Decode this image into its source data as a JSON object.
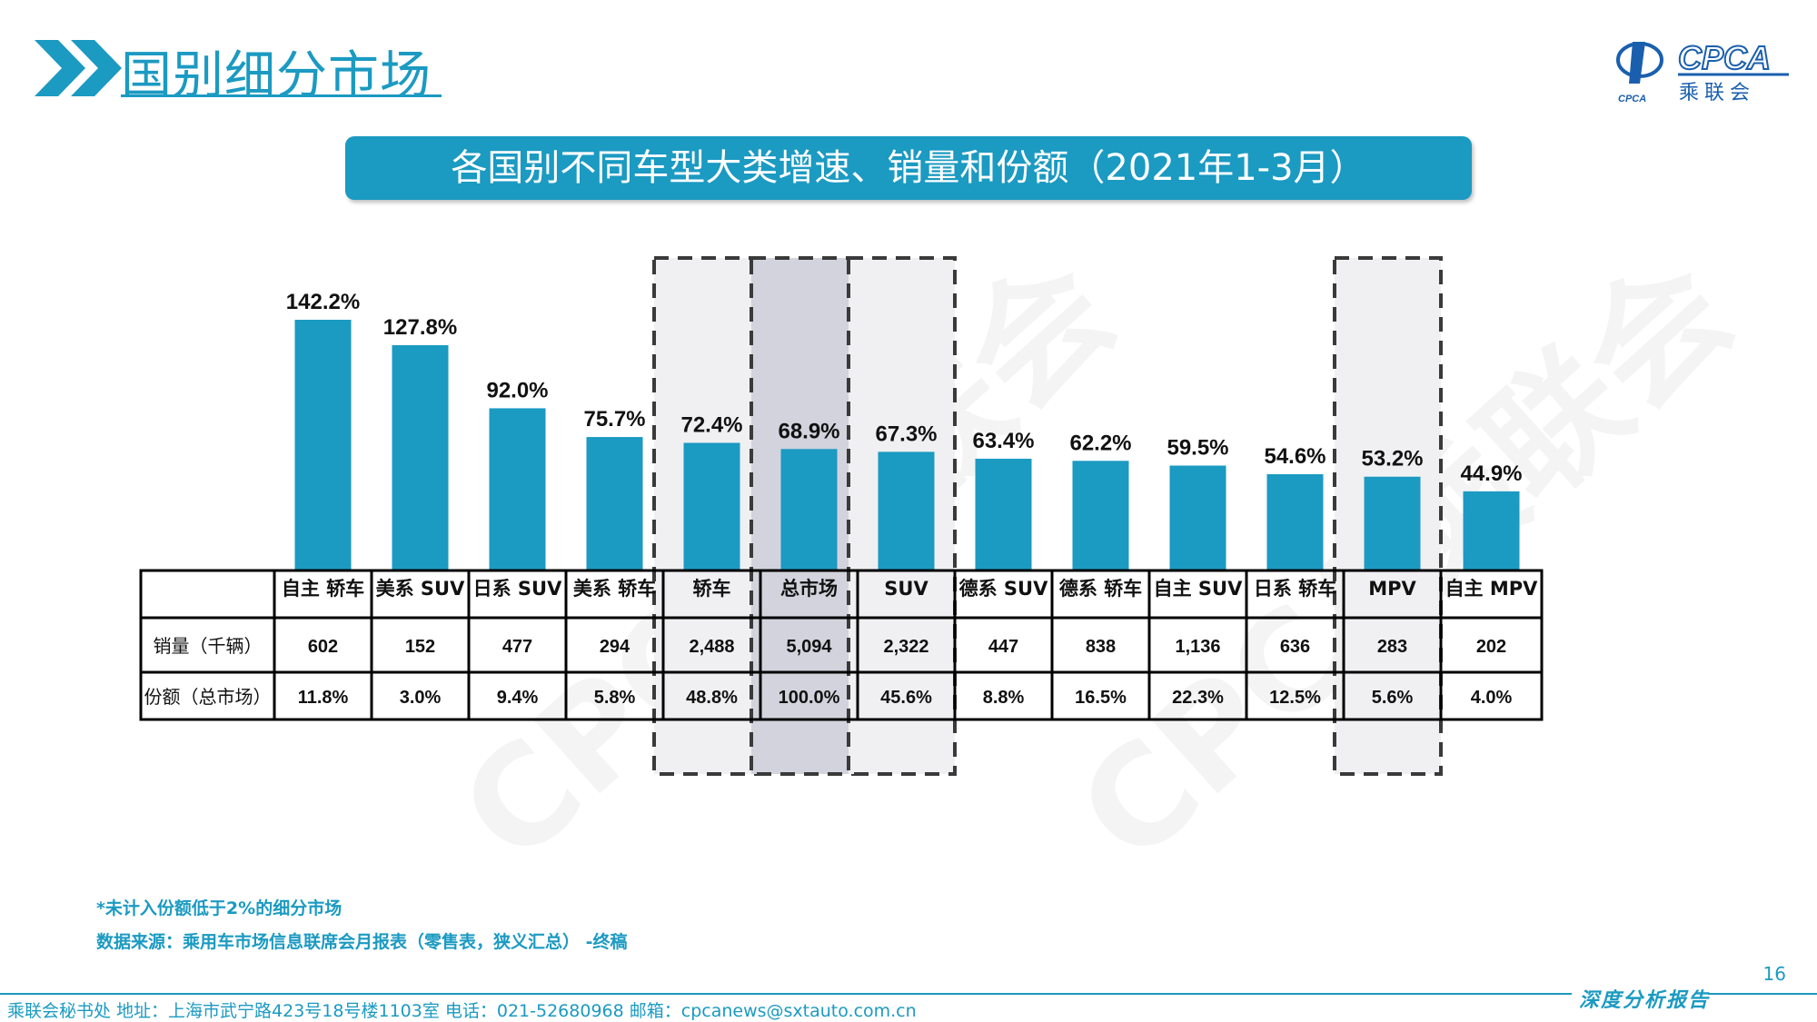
{
  "header": {
    "title": "国别细分市场",
    "logo_text": "CPCA",
    "logo_subtext": "乘联会",
    "logo_small": "CPCA"
  },
  "banner": {
    "text": "各国别不同车型大类增速、销量和份额（2021年1-3月）"
  },
  "watermark": {
    "text": "CPCA乘联会"
  },
  "colors": {
    "accent": "#1b9ac2",
    "highlight_fill": "#f0f0f2",
    "total_fill": "#d2d3dc",
    "dash": "#3a3a3a"
  },
  "chart_data": {
    "type": "bar",
    "title": "各国别不同车型大类增速、销量和份额（2021年1-3月）",
    "categories": [
      "自主 轿车",
      "美系 SUV",
      "日系 SUV",
      "美系 轿车",
      "轿车",
      "总市场",
      "SUV",
      "德系 SUV",
      "德系 轿车",
      "自主 SUV",
      "日系 轿车",
      "MPV",
      "自主 MPV"
    ],
    "series": [
      {
        "values": [
          142.2,
          127.8,
          92.0,
          75.7,
          72.4,
          68.9,
          67.3,
          63.4,
          62.2,
          59.5,
          54.6,
          53.2,
          44.9
        ]
      }
    ],
    "value_labels": [
      "142.2%",
      "127.8%",
      "92.0%",
      "75.7%",
      "72.4%",
      "68.9%",
      "67.3%",
      "63.4%",
      "62.2%",
      "59.5%",
      "54.6%",
      "53.2%",
      "44.9%"
    ],
    "ylim": [
      0,
      150
    ],
    "grid": false,
    "highlighted_columns": [
      "轿车",
      "总市场",
      "SUV",
      "MPV"
    ],
    "total_column": "总市场",
    "table": {
      "rows": [
        {
          "label": "销量（千辆）",
          "values": [
            "602",
            "152",
            "477",
            "294",
            "2,488",
            "5,094",
            "2,322",
            "447",
            "838",
            "1,136",
            "636",
            "283",
            "202"
          ]
        },
        {
          "label": "份额（总市场）",
          "values": [
            "11.8%",
            "3.0%",
            "9.4%",
            "5.8%",
            "48.8%",
            "100.0%",
            "45.6%",
            "8.8%",
            "16.5%",
            "22.3%",
            "12.5%",
            "5.6%",
            "4.0%"
          ]
        }
      ]
    }
  },
  "notes": {
    "note1": "*未计入份额低于2%的细分市场",
    "note2": "数据来源：乘用车市场信息联席会月报表（零售表，狭义汇总） -终稿"
  },
  "footer": {
    "page_number": "16",
    "contact": "乘联会秘书处   地址：上海市武宁路423号18号楼1103室  电话：021-52680968   邮箱：cpcanews@sxtauto.com.cn",
    "report_label": "深度分析报告"
  }
}
